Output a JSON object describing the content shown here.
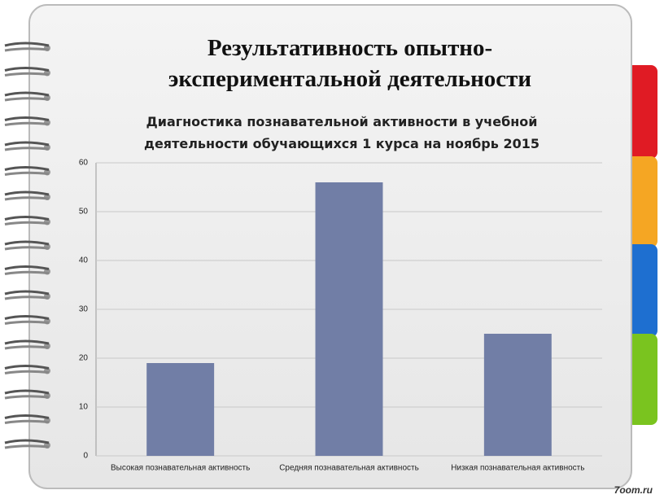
{
  "slide_title": "Результативность опытно-экспериментальной деятельности",
  "watermark": "7oom.ru",
  "chart_data": {
    "type": "bar",
    "title": "Диагностика познавательной активности в учебной деятельности обучающихся 1 курса на ноябрь 2015",
    "categories": [
      "Высокая познавательная активность",
      "Средняя познавательная активность",
      "Низкая познавательная активность"
    ],
    "values": [
      19,
      56,
      25
    ],
    "color": "#717ea6",
    "ylim": [
      0,
      60
    ],
    "yticks": [
      0,
      10,
      20,
      30,
      40,
      50,
      60
    ],
    "grid": true
  }
}
